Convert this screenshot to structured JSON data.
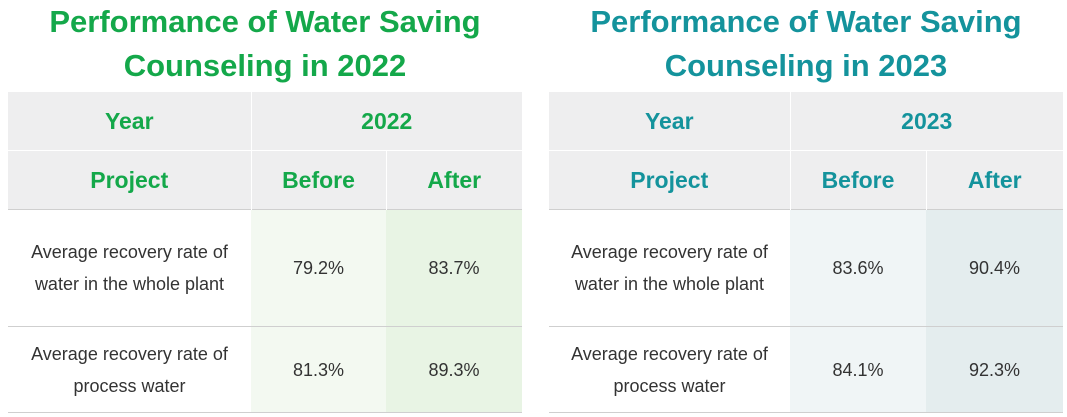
{
  "tables": [
    {
      "title": "Performance of Water Saving Counseling in 2022",
      "title_line1": "Performance of Water Saving",
      "title_line2": "Counseling in 2022",
      "year_label": "Year",
      "year_value": "2022",
      "project_label": "Project",
      "before_label": "Before",
      "after_label": "After",
      "rows": [
        {
          "project": "Average recovery rate of water in the whole plant",
          "before": "79.2%",
          "after": "83.7%"
        },
        {
          "project": "Average recovery rate of process water",
          "before": "81.3%",
          "after": "89.3%"
        }
      ],
      "accent_color": "#14a84a"
    },
    {
      "title": "Performance of Water Saving Counseling in 2023",
      "title_line1": "Performance of Water Saving",
      "title_line2": "Counseling in 2023",
      "year_label": "Year",
      "year_value": "2023",
      "project_label": "Project",
      "before_label": "Before",
      "after_label": "After",
      "rows": [
        {
          "project": "Average recovery rate of water in the whole plant",
          "before": "83.6%",
          "after": "90.4%"
        },
        {
          "project": "Average recovery rate of process water",
          "before": "84.1%",
          "after": "92.3%"
        }
      ],
      "accent_color": "#14939c"
    }
  ]
}
